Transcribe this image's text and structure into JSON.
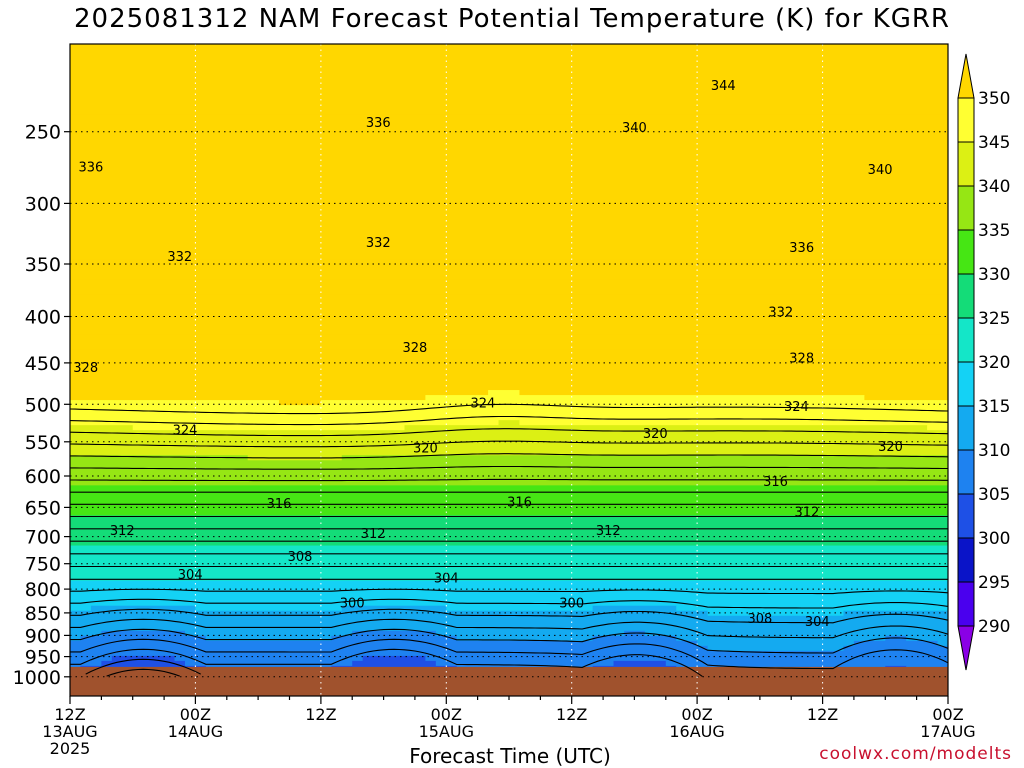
{
  "title": "2025081312 NAM Forecast Potential Temperature (K) for KGRR",
  "xlabel": "Forecast Time (UTC)",
  "credit": "coolwx.com/modelts",
  "chart_data": {
    "type": "contour",
    "title": "2025081312 NAM Forecast Potential Temperature (K) for KGRR",
    "xlabel": "Forecast Time (UTC)",
    "ylabel": "",
    "x_ticks": [
      {
        "hour": 0,
        "label": "12Z",
        "sub": "13AUG",
        "sub2": "2025"
      },
      {
        "hour": 12,
        "label": "00Z",
        "sub": "14AUG",
        "sub2": ""
      },
      {
        "hour": 24,
        "label": "12Z",
        "sub": "",
        "sub2": ""
      },
      {
        "hour": 36,
        "label": "00Z",
        "sub": "15AUG",
        "sub2": ""
      },
      {
        "hour": 48,
        "label": "12Z",
        "sub": "",
        "sub2": ""
      },
      {
        "hour": 60,
        "label": "00Z",
        "sub": "16AUG",
        "sub2": ""
      },
      {
        "hour": 72,
        "label": "12Z",
        "sub": "",
        "sub2": ""
      },
      {
        "hour": 84,
        "label": "00Z",
        "sub": "17AUG",
        "sub2": ""
      }
    ],
    "xlim": [
      0,
      84
    ],
    "y_ticks": [
      250,
      300,
      350,
      400,
      450,
      500,
      550,
      600,
      650,
      700,
      750,
      800,
      850,
      900,
      950,
      1000
    ],
    "ylim": [
      1050,
      200
    ],
    "colorbar_levels": [
      290,
      295,
      300,
      305,
      310,
      315,
      320,
      325,
      330,
      335,
      340,
      345,
      350
    ],
    "colorbar_labels": [
      "350",
      "345",
      "340",
      "335",
      "330",
      "325",
      "320",
      "315",
      "310",
      "305",
      "300",
      "295",
      "290"
    ],
    "fill_colors": [
      "#8a00e6",
      "#4a00ee",
      "#0a14c8",
      "#1e50e6",
      "#1e82f0",
      "#14aaf0",
      "#14d2f5",
      "#14e6c8",
      "#14dc78",
      "#46e614",
      "#96e614",
      "#dcf014",
      "#ffff32",
      "#ffd700"
    ],
    "contour_labels": [
      {
        "text": "344",
        "hour": 62.5,
        "p": 222
      },
      {
        "text": "340",
        "hour": 54,
        "p": 247
      },
      {
        "text": "340",
        "hour": 77.5,
        "p": 275
      },
      {
        "text": "336",
        "hour": 2,
        "p": 273
      },
      {
        "text": "336",
        "hour": 29.5,
        "p": 244
      },
      {
        "text": "336",
        "hour": 70,
        "p": 335
      },
      {
        "text": "332",
        "hour": 10.5,
        "p": 343
      },
      {
        "text": "332",
        "hour": 29.5,
        "p": 331
      },
      {
        "text": "332",
        "hour": 68,
        "p": 395
      },
      {
        "text": "328",
        "hour": 1.5,
        "p": 455
      },
      {
        "text": "328",
        "hour": 33,
        "p": 432
      },
      {
        "text": "328",
        "hour": 70,
        "p": 444
      },
      {
        "text": "324",
        "hour": 11,
        "p": 533
      },
      {
        "text": "324",
        "hour": 39.5,
        "p": 498
      },
      {
        "text": "324",
        "hour": 69.5,
        "p": 502
      },
      {
        "text": "320",
        "hour": 34,
        "p": 558
      },
      {
        "text": "320",
        "hour": 56,
        "p": 538
      },
      {
        "text": "320",
        "hour": 78.5,
        "p": 556
      },
      {
        "text": "316",
        "hour": 20,
        "p": 643
      },
      {
        "text": "316",
        "hour": 43,
        "p": 640
      },
      {
        "text": "316",
        "hour": 67.5,
        "p": 608
      },
      {
        "text": "312",
        "hour": 5,
        "p": 688
      },
      {
        "text": "312",
        "hour": 29,
        "p": 694
      },
      {
        "text": "312",
        "hour": 51.5,
        "p": 688
      },
      {
        "text": "312",
        "hour": 70.5,
        "p": 657
      },
      {
        "text": "308",
        "hour": 22,
        "p": 735
      },
      {
        "text": "308",
        "hour": 66,
        "p": 861
      },
      {
        "text": "304",
        "hour": 11.5,
        "p": 770
      },
      {
        "text": "304",
        "hour": 36,
        "p": 777
      },
      {
        "text": "304",
        "hour": 71.5,
        "p": 868
      },
      {
        "text": "300",
        "hour": 27,
        "p": 828
      },
      {
        "text": "300",
        "hour": 48,
        "p": 828
      }
    ]
  }
}
